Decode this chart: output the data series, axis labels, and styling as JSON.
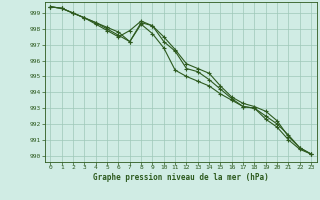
{
  "title": "Graphe pression niveau de la mer (hPa)",
  "x_ticks": [
    0,
    1,
    2,
    3,
    4,
    5,
    6,
    7,
    8,
    9,
    10,
    11,
    12,
    13,
    14,
    15,
    16,
    17,
    18,
    19,
    20,
    21,
    22,
    23
  ],
  "y_ticks": [
    990,
    991,
    992,
    993,
    994,
    995,
    996,
    997,
    998,
    999
  ],
  "ylim": [
    989.6,
    999.7
  ],
  "xlim": [
    -0.5,
    23.5
  ],
  "background_color": "#d0ece4",
  "grid_color": "#9ec8b8",
  "line_color": "#2d5a1e",
  "line1": [
    999.4,
    999.3,
    999.0,
    998.7,
    998.3,
    997.9,
    997.5,
    997.9,
    998.5,
    998.2,
    997.5,
    996.7,
    995.8,
    995.5,
    995.2,
    994.4,
    993.7,
    993.3,
    993.1,
    992.8,
    992.2,
    991.2,
    990.5,
    990.1
  ],
  "line2": [
    999.4,
    999.3,
    999.0,
    998.7,
    998.4,
    998.0,
    997.6,
    997.2,
    998.3,
    997.7,
    996.8,
    995.4,
    995.0,
    994.7,
    994.4,
    993.9,
    993.5,
    993.1,
    993.0,
    992.5,
    992.0,
    991.3,
    990.5,
    990.1
  ],
  "line3": [
    999.4,
    999.3,
    999.0,
    998.7,
    998.4,
    998.1,
    997.8,
    997.2,
    998.4,
    998.2,
    997.2,
    996.6,
    995.5,
    995.3,
    994.8,
    994.2,
    993.6,
    993.1,
    993.0,
    992.3,
    991.8,
    991.0,
    990.4,
    990.1
  ]
}
